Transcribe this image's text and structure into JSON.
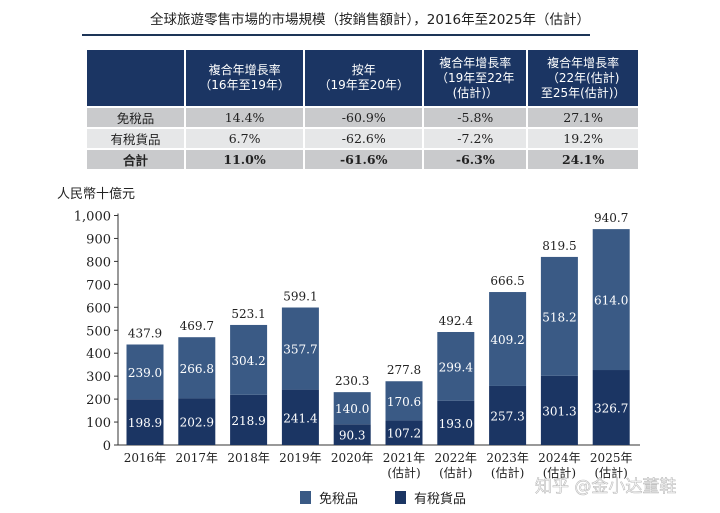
{
  "title": "全球旅遊零售市場的市場規模（按銷售額計），2016年至2025年（估計）",
  "table": {
    "headers": [
      "",
      "複合年增長率\n（16年至19年）",
      "按年\n（19年至20年）",
      "複合年增長率\n（19年至22年\n(估計)）",
      "複合年增長率\n（22年(估計)\n至25年(估計)）"
    ],
    "rows": [
      [
        "免稅品",
        "14.4%",
        "-60.9%",
        "-5.8%",
        "27.1%"
      ],
      [
        "有稅貨品",
        "6.7%",
        "-62.6%",
        "-7.2%",
        "19.2%"
      ],
      [
        "合計",
        "11.0%",
        "-61.6%",
        "-6.3%",
        "24.1%"
      ]
    ]
  },
  "chart_data": {
    "type": "bar",
    "stacked": true,
    "ylabel": "人民幣十億元",
    "ylim": [
      0,
      1000
    ],
    "yticks": [
      "0",
      "100",
      "200",
      "300",
      "400",
      "500",
      "600",
      "700",
      "800",
      "900",
      "1,000"
    ],
    "categories": [
      "2016年",
      "2017年",
      "2018年",
      "2019年",
      "2020年",
      "2021年\n(估計)",
      "2022年\n(估計)",
      "2023年\n(估計)",
      "2024年\n(估計)",
      "2025年\n(估計)"
    ],
    "series": [
      {
        "name": "有稅貨品",
        "color": "#1b3563",
        "values": [
          198.9,
          202.9,
          218.9,
          241.4,
          90.3,
          107.2,
          193.0,
          257.3,
          301.3,
          326.7
        ]
      },
      {
        "name": "免稅品",
        "color": "#3a5a85",
        "values": [
          239.0,
          266.8,
          304.2,
          357.7,
          140.0,
          170.6,
          299.4,
          409.2,
          518.2,
          614.0
        ]
      }
    ],
    "totals": [
      437.9,
      469.7,
      523.1,
      599.1,
      230.3,
      277.8,
      492.4,
      666.5,
      819.5,
      940.7
    ],
    "legend_position": "bottom",
    "legend_order": [
      "免稅品",
      "有稅貨品"
    ]
  },
  "watermark": "知乎 @金小达董鞋"
}
